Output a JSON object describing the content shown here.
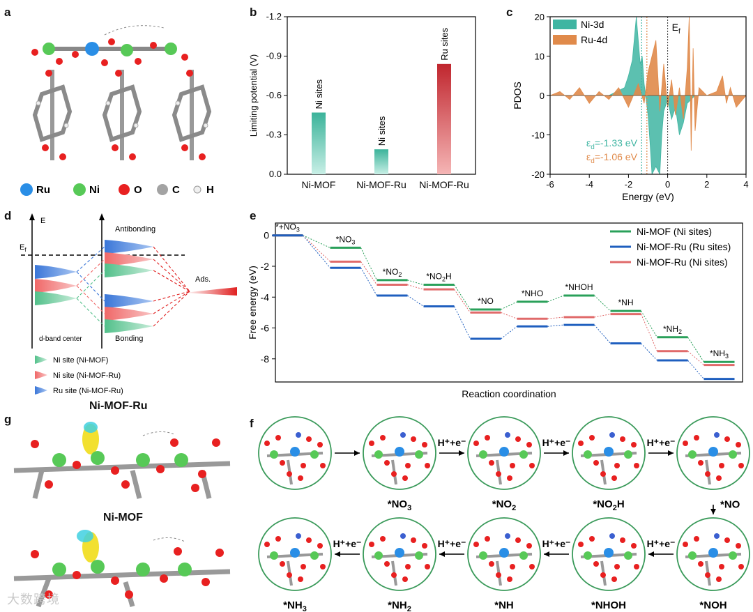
{
  "panels": {
    "a": "a",
    "b": "b",
    "c": "c",
    "d": "d",
    "e": "e",
    "f": "f",
    "g": "g"
  },
  "panel_a": {
    "legend": [
      {
        "label": "Ru",
        "color": "#2a8ee6"
      },
      {
        "label": "Ni",
        "color": "#57c957"
      },
      {
        "label": "O",
        "color": "#e82020"
      },
      {
        "label": "C",
        "color": "#a3a3a3"
      },
      {
        "label": "H",
        "color": "#f0f0f0"
      }
    ]
  },
  "panel_d": {
    "axis_label": "E",
    "fermi_label": "E",
    "fermi_sub": "f",
    "antibonding": "Antibonding",
    "bonding": "Bonding",
    "ads": "Ads.",
    "dband": "d-band center",
    "legend": [
      {
        "label": "Ni site (Ni-MOF)",
        "color": "#6cc9a1"
      },
      {
        "label": "Ni site (Ni-MOF-Ru)",
        "color": "#f08080"
      },
      {
        "label": "Ru site (Ni-MOF-Ru)",
        "color": "#5b8fe0"
      }
    ]
  },
  "panel_g": {
    "title_top": "Ni-MOF-Ru",
    "title_bottom": "Ni-MOF"
  },
  "panel_f": {
    "step_label": "H⁺+e⁻",
    "top_row": [
      "",
      "*NO3",
      "*NO2",
      "*NO2H",
      ""
    ],
    "right_label": "*NO",
    "bottom_row": [
      "*NH3",
      "*NH2",
      "*NH",
      "*NHOH",
      "*NOH"
    ]
  },
  "watermark": "大数跨境",
  "chart_data": [
    {
      "id": "b",
      "type": "bar",
      "categories": [
        "Ni-MOF",
        "Ni-MOF-Ru",
        "Ni-MOF-Ru"
      ],
      "values": [
        -0.47,
        -0.19,
        -0.84
      ],
      "bar_labels": [
        "Ni sites",
        "Ni sites",
        "Ru sites"
      ],
      "colors": [
        "#3bb39a",
        "#3bb39a",
        "#c0262e"
      ],
      "ylabel": "Limiting potential (V)",
      "ylim": [
        0.0,
        -1.2
      ],
      "yticks": [
        "0.0",
        "-0.3",
        "-0.6",
        "-0.9",
        "-1.2"
      ],
      "ytick_values": [
        0.0,
        -0.3,
        -0.6,
        -0.9,
        -1.2
      ]
    },
    {
      "id": "c",
      "type": "area",
      "xlabel": "Energy (eV)",
      "ylabel": "PDOS",
      "xlim": [
        -6,
        4
      ],
      "ylim": [
        -20,
        20
      ],
      "xticks": [
        "-6",
        "-4",
        "-2",
        "0",
        "2",
        "4"
      ],
      "xtick_values": [
        -6,
        -4,
        -2,
        0,
        2,
        4
      ],
      "yticks": [
        "20",
        "10",
        "0",
        "-10",
        "-20"
      ],
      "ytick_values": [
        20,
        10,
        0,
        -10,
        -20
      ],
      "fermi_label": "E",
      "fermi_sub": "f",
      "series": [
        {
          "name": "Ni-3d",
          "color": "#3fb5a2",
          "d_center_label": "ε",
          "d_center_text": "d",
          "d_center_value": "=-1.33 eV",
          "d_center": -1.33,
          "x": [
            -6,
            -3,
            -2.6,
            -2.2,
            -2.0,
            -1.8,
            -1.6,
            -1.5,
            -1.4,
            -1.3,
            -1.2,
            -1.0,
            -0.9,
            -0.8,
            -0.6,
            -0.4,
            -0.3,
            -0.2,
            0,
            0.2,
            0.4,
            0.6,
            0.8,
            1.0,
            1.2,
            1.4,
            4
          ],
          "values": [
            0,
            0,
            1,
            2,
            5,
            9,
            20,
            14,
            8,
            10,
            3,
            -5,
            -12,
            -20,
            -18,
            -20,
            -10,
            -4,
            -1,
            -6,
            -3,
            -10,
            -7,
            -2,
            -1,
            0,
            0
          ]
        },
        {
          "name": "Ru-4d",
          "color": "#e08a4a",
          "d_center_label": "ε",
          "d_center_text": "d",
          "d_center_value": "=-1.06 eV",
          "d_center": -1.06,
          "x": [
            -6,
            -5.5,
            -5,
            -4.5,
            -4,
            -3.5,
            -3,
            -2.5,
            -2,
            -1.5,
            -1.2,
            -1,
            -0.8,
            -0.6,
            -0.4,
            -0.2,
            0,
            0.2,
            0.4,
            0.6,
            0.8,
            1.0,
            1.1,
            1.2,
            1.3,
            1.4,
            1.6,
            2,
            2.5,
            2.8,
            3.0,
            3.2,
            3.5,
            4
          ],
          "values": [
            0,
            1,
            -1,
            2,
            -2,
            1,
            -1,
            2,
            -3,
            3,
            -2,
            6,
            10,
            14,
            -4,
            8,
            -3,
            4,
            -5,
            2,
            -6,
            7,
            20,
            -14,
            12,
            -9,
            2,
            0,
            1,
            5,
            -2,
            2,
            -3,
            0
          ]
        }
      ]
    },
    {
      "id": "e",
      "type": "line",
      "xlabel": "Reaction coordination",
      "ylabel": "Free energy (eV)",
      "ylim": [
        -9.5,
        0.8
      ],
      "yticks": [
        "0",
        "-2",
        "-4",
        "-6",
        "-8"
      ],
      "ytick_values": [
        0,
        -2,
        -4,
        -6,
        -8
      ],
      "steps": [
        {
          "main": "*+NO",
          "sub": "3",
          "tail": ""
        },
        {
          "main": "*NO",
          "sub": "3",
          "tail": ""
        },
        {
          "main": "*NO",
          "sub": "2",
          "tail": ""
        },
        {
          "main": "*NO",
          "sub": "2",
          "tail": "H"
        },
        {
          "main": "*NO",
          "sub": "",
          "tail": ""
        },
        {
          "main": "*NHO",
          "sub": "",
          "tail": ""
        },
        {
          "main": "*NHOH",
          "sub": "",
          "tail": ""
        },
        {
          "main": "*NH",
          "sub": "",
          "tail": ""
        },
        {
          "main": "*NH",
          "sub": "2",
          "tail": ""
        },
        {
          "main": "*NH",
          "sub": "3",
          "tail": ""
        }
      ],
      "series": [
        {
          "name": "Ni-MOF (Ni sites)",
          "color": "#2aa05a",
          "values": [
            0,
            -0.8,
            -2.9,
            -3.2,
            -4.8,
            -4.3,
            -3.9,
            -4.9,
            -6.6,
            -8.2
          ]
        },
        {
          "name": "Ni-MOF-Ru (Ru sites)",
          "color": "#1f5fbf",
          "values": [
            0,
            -2.1,
            -3.9,
            -4.6,
            -6.7,
            -5.9,
            -5.8,
            -7.0,
            -8.1,
            -9.3
          ]
        },
        {
          "name": "Ni-MOF-Ru (Ni sites)",
          "color": "#e06a6a",
          "values": [
            0,
            -1.7,
            -3.2,
            -3.5,
            -5.0,
            -5.4,
            -5.3,
            -5.1,
            -7.5,
            -8.4
          ]
        }
      ]
    }
  ]
}
